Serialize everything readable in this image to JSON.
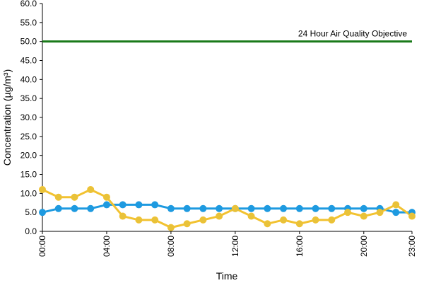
{
  "chart_data": {
    "type": "line",
    "title": "",
    "xlabel": "Time",
    "ylabel": "Concentration (µg/m³)",
    "ylim": [
      0,
      60
    ],
    "y_ticks": [
      "0.0",
      "5.0",
      "10.0",
      "15.0",
      "20.0",
      "25.0",
      "30.0",
      "35.0",
      "40.0",
      "45.0",
      "50.0",
      "55.0",
      "60.0"
    ],
    "x_tick_labels": [
      "00:00",
      "04:00",
      "08:00",
      "12:00",
      "16:00",
      "20:00",
      "23:00"
    ],
    "x_tick_hours": [
      0,
      4,
      8,
      12,
      16,
      20,
      23
    ],
    "grid": false,
    "legend": "none",
    "x": [
      0,
      1,
      2,
      3,
      4,
      5,
      6,
      7,
      8,
      9,
      10,
      11,
      12,
      13,
      14,
      15,
      16,
      17,
      18,
      19,
      20,
      21,
      22,
      23
    ],
    "series": [
      {
        "color": "#1E9AE0",
        "values": [
          5,
          6,
          6,
          6,
          7,
          7,
          7,
          7,
          6,
          6,
          6,
          6,
          6,
          6,
          6,
          6,
          6,
          6,
          6,
          6,
          6,
          6,
          5,
          5
        ]
      },
      {
        "color": "#F2C230",
        "marker_color": "#E8C23A",
        "values": [
          11,
          9,
          9,
          11,
          9,
          4,
          3,
          3,
          1,
          2,
          3,
          4,
          6,
          4,
          2,
          3,
          2,
          3,
          3,
          5,
          4,
          5,
          7,
          4
        ]
      }
    ],
    "reference_line": {
      "value": 50,
      "label": "24 Hour Air Quality Objective",
      "color": "#1A7A1A"
    }
  }
}
